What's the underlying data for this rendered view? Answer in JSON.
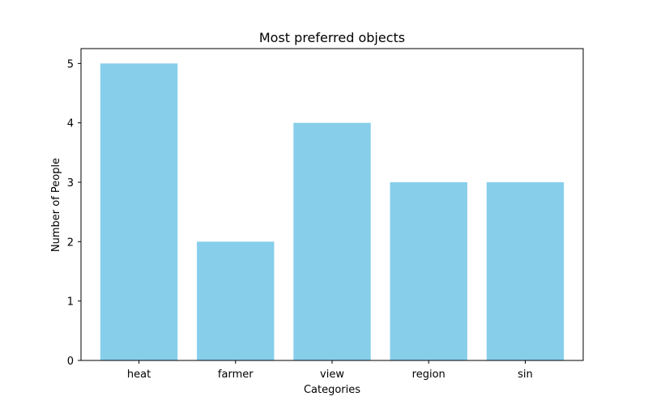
{
  "chart_data": {
    "type": "bar",
    "title": "Most preferred objects",
    "xlabel": "Categories",
    "ylabel": "Number of People",
    "categories": [
      "heat",
      "farmer",
      "view",
      "region",
      "sin"
    ],
    "values": [
      5,
      2,
      4,
      3,
      3
    ],
    "ylim": [
      0,
      5.25
    ],
    "yticks": [
      0,
      1,
      2,
      3,
      4,
      5
    ],
    "bar_color": "#87ceeb",
    "grid": false,
    "legend": "none"
  }
}
